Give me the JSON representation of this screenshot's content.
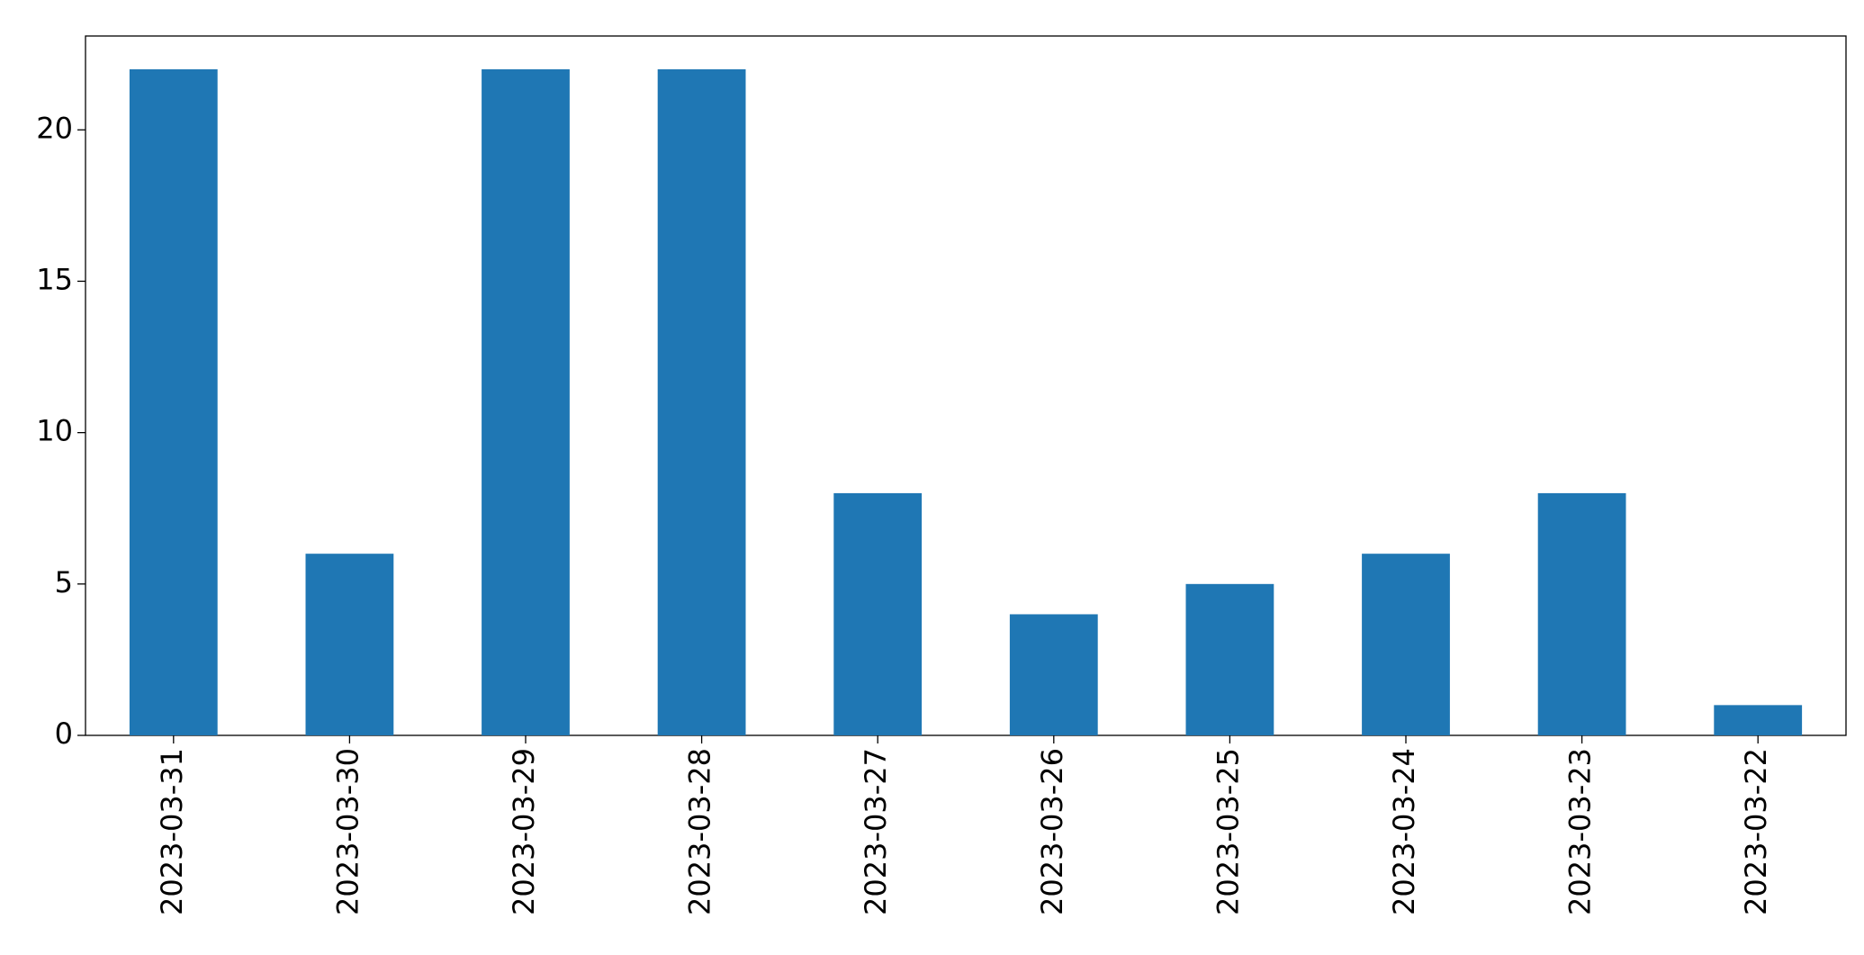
{
  "chart_data": {
    "type": "bar",
    "categories": [
      "2023-03-31",
      "2023-03-30",
      "2023-03-29",
      "2023-03-28",
      "2023-03-27",
      "2023-03-26",
      "2023-03-25",
      "2023-03-24",
      "2023-03-23",
      "2023-03-22"
    ],
    "values": [
      22,
      6,
      22,
      22,
      8,
      4,
      5,
      6,
      8,
      1
    ],
    "color": "#1f77b4",
    "ylim": [
      0,
      23.1
    ],
    "yticks": [
      0,
      5,
      10,
      15,
      20
    ],
    "grid": false
  }
}
